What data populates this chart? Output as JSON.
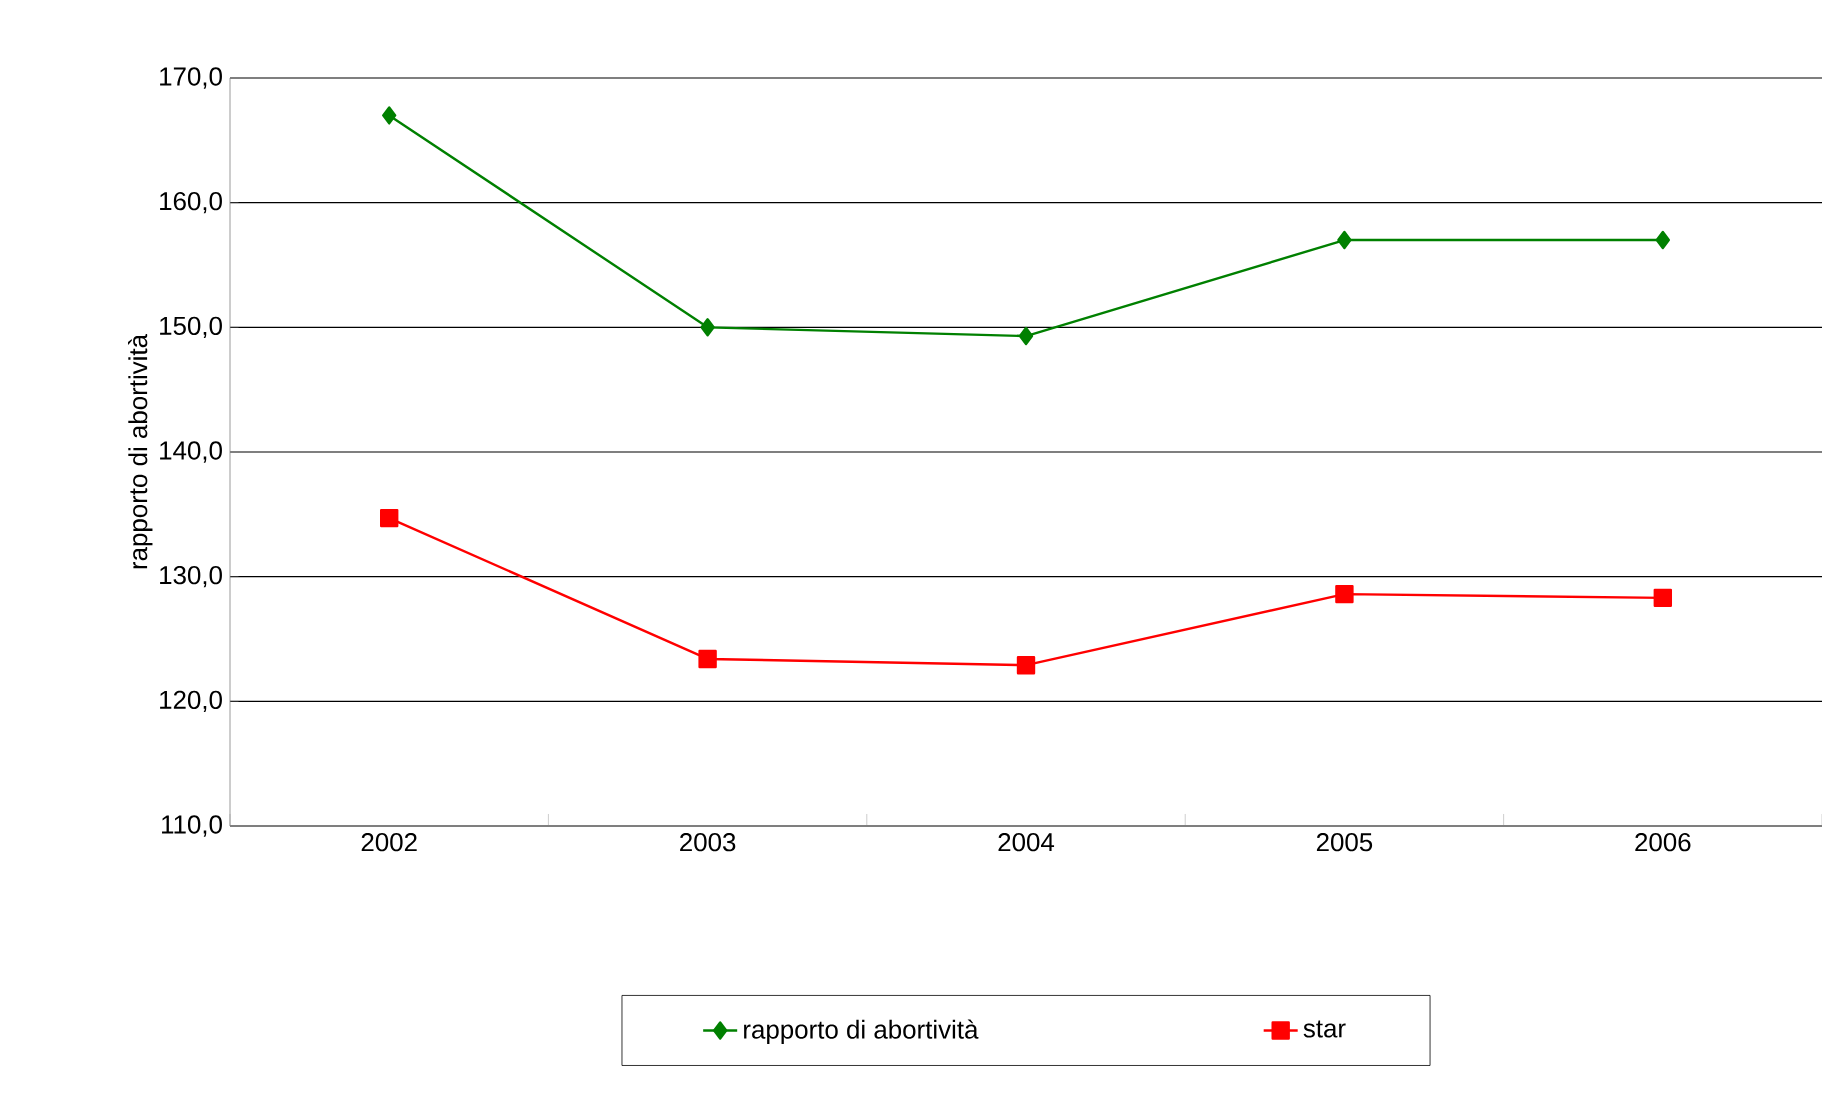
{
  "chart_data": {
    "type": "line",
    "ylabel": "rapporto di abortività",
    "categories": [
      "2002",
      "2003",
      "2004",
      "2005",
      "2006"
    ],
    "series": [
      {
        "name": "rapporto di abortività",
        "color": "#008000",
        "marker": "diamond",
        "values": [
          167.0,
          150.0,
          149.3,
          157.0,
          157.0
        ]
      },
      {
        "name": "star",
        "color": "#ff0000",
        "marker": "square",
        "values": [
          134.7,
          123.4,
          122.9,
          128.6,
          128.3
        ]
      }
    ],
    "ylim": [
      110,
      170
    ],
    "yticks": [
      {
        "value": 110,
        "label": "110,0"
      },
      {
        "value": 120,
        "label": "120,0"
      },
      {
        "value": 130,
        "label": "130,0"
      },
      {
        "value": 140,
        "label": "140,0"
      },
      {
        "value": 150,
        "label": "150,0"
      },
      {
        "value": 160,
        "label": "160,0"
      },
      {
        "value": 170,
        "label": "170,0"
      }
    ],
    "grid": "y",
    "legend": "bottom"
  }
}
